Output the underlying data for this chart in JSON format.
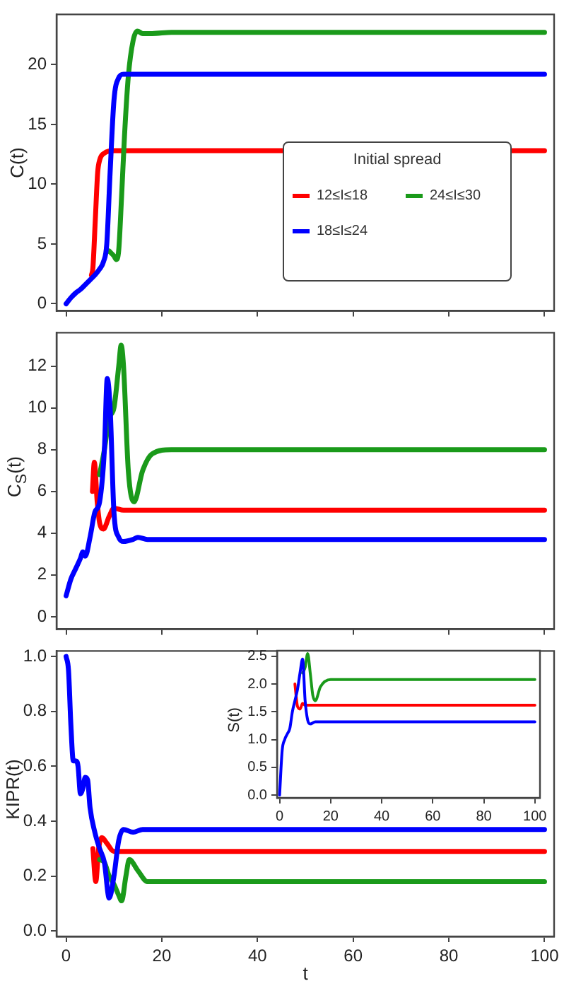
{
  "chart_data": [
    {
      "type": "line",
      "ylabel": "C(t)",
      "legend_title": "Initial spread",
      "legend": "right",
      "marker": "none",
      "grid": false,
      "tick_labels": "y",
      "xlim": [
        -2,
        102
      ],
      "xticks": [
        0,
        20,
        40,
        60,
        80,
        100
      ],
      "ylim": [
        -0.6,
        24.2
      ],
      "yticks": [
        0,
        5,
        10,
        15,
        20
      ],
      "series": [
        {
          "name": "12≤I≤18",
          "color": "#ff0000",
          "x": [
            5.3,
            5.6,
            6.1,
            6.6,
            7,
            8,
            10,
            15,
            100
          ],
          "values": [
            2.4,
            3,
            7,
            11,
            12,
            12.6,
            12.8,
            12.8,
            12.8
          ]
        },
        {
          "name": "24≤I≤30",
          "color": "#1a9a1a",
          "x": [
            9,
            10,
            10.5,
            11,
            11.6,
            12.2,
            13,
            14,
            14.9,
            16,
            18,
            22,
            100
          ],
          "values": [
            4.4,
            4,
            3.7,
            4.5,
            9,
            14,
            19,
            22,
            22.8,
            22.6,
            22.6,
            22.7,
            22.7
          ]
        },
        {
          "name": "18≤I≤24",
          "color": "#0000ff",
          "x": [
            0,
            1,
            2,
            3,
            4,
            5,
            6,
            7,
            7.8,
            8.5,
            9.2,
            10,
            11,
            12,
            15,
            100
          ],
          "values": [
            0,
            0.5,
            0.9,
            1.2,
            1.6,
            2,
            2.4,
            2.9,
            3.5,
            5,
            11,
            17,
            18.9,
            19.2,
            19.2,
            19.2
          ]
        }
      ]
    },
    {
      "type": "line",
      "ylabel": "C$_{S}$(t)",
      "marker": "none",
      "grid": false,
      "tick_labels": "y",
      "xlim": [
        -2,
        102
      ],
      "xticks": [
        0,
        20,
        40,
        60,
        80,
        100
      ],
      "ylim": [
        -0.6,
        13.6
      ],
      "yticks": [
        0,
        2,
        4,
        6,
        8,
        10,
        12
      ],
      "series": [
        {
          "color": "#ff0000",
          "x": [
            5.5,
            5.9,
            6.5,
            7,
            7.8,
            9,
            10,
            12,
            15,
            100
          ],
          "values": [
            6,
            7.4,
            5.5,
            4.5,
            4.2,
            4.8,
            5.2,
            5.1,
            5.1,
            5.1
          ]
        },
        {
          "color": "#1a9a1a",
          "x": [
            7,
            8,
            9,
            10,
            11,
            11.5,
            12,
            13,
            14.2,
            16,
            18,
            22,
            100
          ],
          "values": [
            6.8,
            8,
            9.5,
            10,
            12,
            13,
            12,
            7,
            5.5,
            7,
            7.8,
            8,
            8
          ]
        },
        {
          "color": "#0000ff",
          "x": [
            0,
            1,
            2,
            3,
            3.5,
            4,
            5,
            6,
            7,
            8,
            8.6,
            9.2,
            10,
            11,
            12,
            14,
            15,
            17,
            100
          ],
          "values": [
            1,
            1.8,
            2.3,
            2.8,
            3.1,
            2.9,
            3.8,
            5,
            5.5,
            8,
            11.4,
            10,
            5,
            3.8,
            3.6,
            3.7,
            3.8,
            3.7,
            3.7
          ]
        }
      ]
    },
    {
      "type": "line",
      "xlabel": "t",
      "ylabel": "KIPR(t)",
      "marker": "none",
      "grid": false,
      "xlim": [
        -2,
        102
      ],
      "xticks": [
        0,
        20,
        40,
        60,
        80,
        100
      ],
      "ylim": [
        -0.02,
        1.02
      ],
      "yticks": [
        {
          "value": 0,
          "label": "0.0"
        },
        0.2,
        0.4,
        0.6,
        0.8,
        {
          "value": 1,
          "label": "1.0"
        }
      ],
      "series": [
        {
          "color": "#ff0000",
          "x": [
            5.6,
            6.2,
            6.8,
            7.5,
            8.5,
            10,
            12,
            100
          ],
          "values": [
            0.3,
            0.18,
            0.3,
            0.34,
            0.32,
            0.29,
            0.29,
            0.29
          ]
        },
        {
          "color": "#1a9a1a",
          "x": [
            7,
            8,
            9,
            10,
            11,
            11.6,
            12.5,
            13.2,
            15,
            17,
            20,
            100
          ],
          "values": [
            0.26,
            0.25,
            0.2,
            0.17,
            0.13,
            0.11,
            0.2,
            0.26,
            0.22,
            0.18,
            0.18,
            0.18
          ]
        },
        {
          "color": "#0000ff",
          "x": [
            0,
            0.5,
            1,
            1.5,
            2,
            2.5,
            3,
            3.5,
            4,
            4.5,
            5,
            6,
            7,
            8,
            9,
            10,
            11,
            12,
            14,
            16,
            100
          ],
          "values": [
            1,
            0.95,
            0.75,
            0.62,
            0.62,
            0.6,
            0.5,
            0.52,
            0.56,
            0.55,
            0.45,
            0.36,
            0.3,
            0.25,
            0.12,
            0.2,
            0.33,
            0.37,
            0.36,
            0.37,
            0.37
          ]
        }
      ]
    },
    {
      "type": "line",
      "ylabel": "S(t)",
      "marker": "none",
      "grid": false,
      "xlim": [
        -1,
        102
      ],
      "xticks": [
        0,
        20,
        40,
        60,
        80,
        100
      ],
      "ylim": [
        -0.05,
        2.6
      ],
      "yticks": [
        {
          "value": 0,
          "label": "0.0"
        },
        0.5,
        {
          "value": 1,
          "label": "1.0"
        },
        1.5,
        {
          "value": 2,
          "label": "2.0"
        },
        2.5
      ],
      "series": [
        {
          "color": "#ff0000",
          "x": [
            6,
            7,
            8,
            9,
            10,
            100
          ],
          "values": [
            2,
            1.6,
            1.55,
            1.65,
            1.62,
            1.62
          ]
        },
        {
          "color": "#1a9a1a",
          "x": [
            9,
            10,
            11,
            12,
            13,
            14,
            16,
            20,
            100
          ],
          "values": [
            2.2,
            2.3,
            2.55,
            2.2,
            1.8,
            1.7,
            1.95,
            2.08,
            2.08
          ]
        },
        {
          "color": "#0000ff",
          "x": [
            0,
            1,
            2,
            3,
            4,
            5,
            6,
            7,
            8,
            9,
            10,
            11,
            12,
            14,
            100
          ],
          "values": [
            0,
            0.8,
            1,
            1.1,
            1.2,
            1.5,
            1.7,
            1.9,
            2.2,
            2.45,
            1.7,
            1.35,
            1.28,
            1.32,
            1.32
          ]
        }
      ]
    }
  ]
}
